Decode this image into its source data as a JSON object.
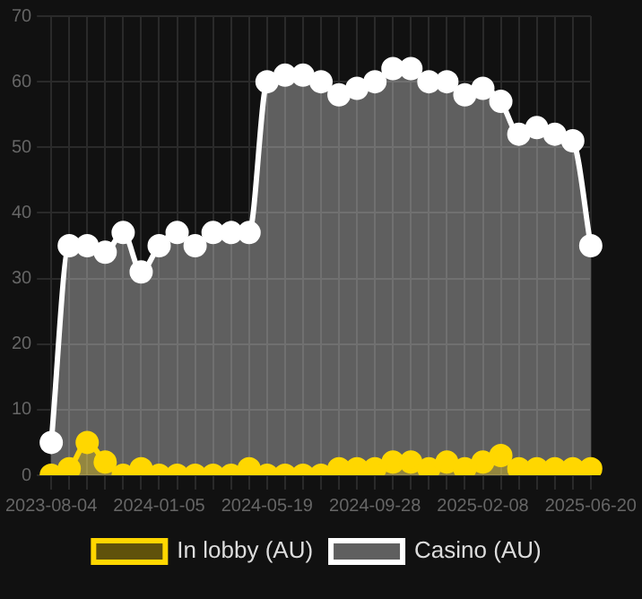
{
  "chart_data": {
    "type": "area",
    "categories": [
      "2023-08-04",
      null,
      null,
      null,
      null,
      null,
      "2024-01-05",
      null,
      null,
      null,
      null,
      null,
      "2024-05-19",
      null,
      null,
      null,
      null,
      null,
      "2024-09-28",
      null,
      null,
      null,
      null,
      null,
      "2025-02-08",
      null,
      null,
      null,
      null,
      null,
      "2025-06-20"
    ],
    "series": [
      {
        "name": "In lobby (AU)",
        "color": "#ffd700",
        "values": [
          0,
          1,
          5,
          2,
          0,
          1,
          0,
          0,
          0,
          0,
          0,
          1,
          0,
          0,
          0,
          0,
          1,
          1,
          1,
          2,
          2,
          1,
          2,
          1,
          2,
          3,
          1,
          1,
          1,
          1,
          1
        ]
      },
      {
        "name": "Casino (AU)",
        "color": "#ffffff",
        "values": [
          5,
          35,
          35,
          34,
          37,
          31,
          35,
          37,
          35,
          37,
          37,
          37,
          60,
          61,
          61,
          60,
          58,
          59,
          60,
          62,
          62,
          60,
          60,
          58,
          59,
          57,
          52,
          53,
          52,
          51,
          35
        ]
      }
    ],
    "ylim": [
      0,
      70
    ],
    "yticks": [
      0,
      10,
      20,
      30,
      40,
      50,
      60,
      70
    ],
    "grid": true,
    "legend": "bottom",
    "marker": "circle"
  }
}
